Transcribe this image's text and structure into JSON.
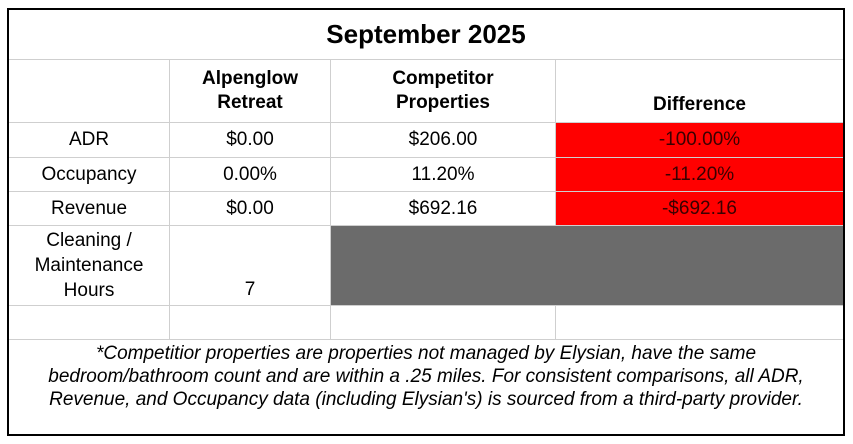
{
  "title": "September 2025",
  "headers": {
    "col1": "",
    "col2": "Alpenglow Retreat",
    "col3": "Competitor Properties",
    "col4": "Difference"
  },
  "rows": [
    {
      "label": "ADR",
      "alpenglow": "$0.00",
      "competitor": "$206.00",
      "difference": "-100.00%"
    },
    {
      "label": "Occupancy",
      "alpenglow": "0.00%",
      "competitor": "11.20%",
      "difference": "-11.20%"
    },
    {
      "label": "Revenue",
      "alpenglow": "$0.00",
      "competitor": "$692.16",
      "difference": "-$692.16"
    }
  ],
  "cleaning": {
    "label": "Cleaning / Maintenance Hours",
    "value": "7"
  },
  "footnote": "*Competitior properties are properties not managed by Elysian, have the same bedroom/bathroom count and are within a .25 miles. For consistent comparisons, all ADR, Revenue, and Occupancy data (including Elysian's) is sourced from a third-party provider.",
  "colors": {
    "negative": "#ff0000",
    "blank": "#6b6b6b"
  }
}
